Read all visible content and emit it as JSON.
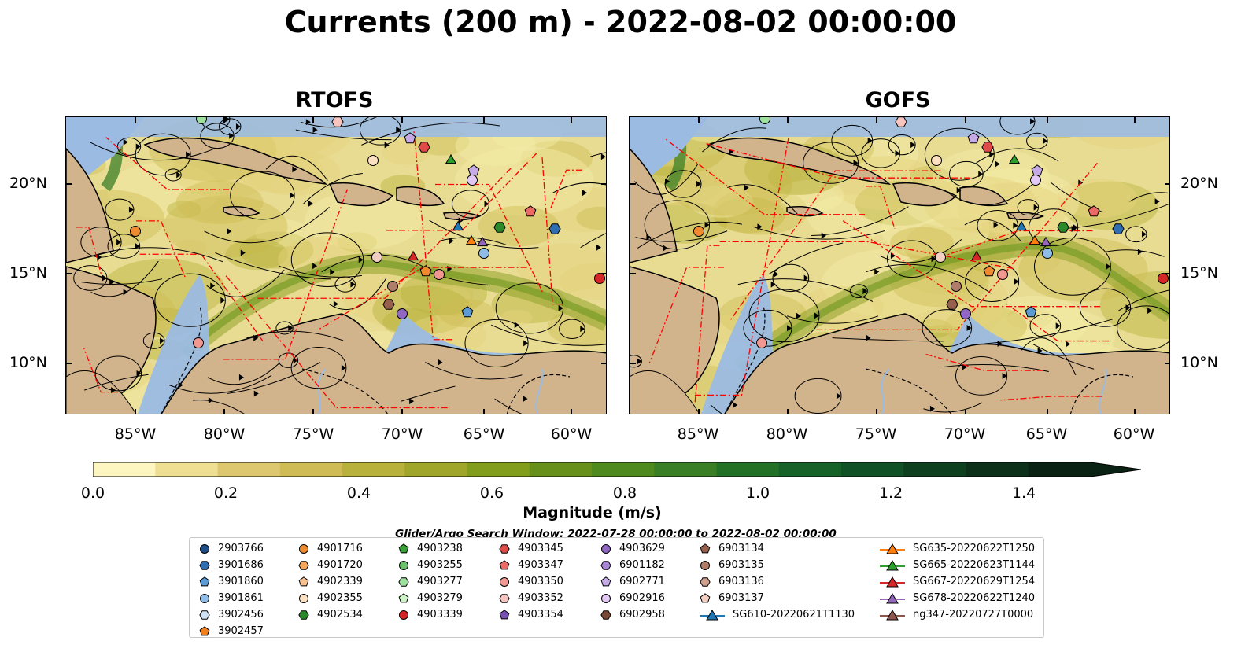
{
  "title": "Currents (200 m) - 2022-08-02 00:00:00",
  "panels": [
    {
      "title": "RTOFS"
    },
    {
      "title": "GOFS"
    }
  ],
  "lat_labels": [
    "20°N",
    "15°N",
    "10°N"
  ],
  "lon_labels": [
    "85°W",
    "80°W",
    "75°W",
    "70°W",
    "65°W",
    "60°W"
  ],
  "colorbar": {
    "label": "Magnitude (m/s)",
    "ticks": [
      "0.0",
      "0.2",
      "0.4",
      "0.6",
      "0.8",
      "1.0",
      "1.2",
      "1.4"
    ],
    "range": [
      0.0,
      1.6
    ],
    "colors": [
      "#fdf6c0",
      "#eedf93",
      "#ddc870",
      "#cfbc55",
      "#b8b23c",
      "#a0a62a",
      "#829d1c",
      "#67901a",
      "#4e8a1e",
      "#3a7f25",
      "#237127",
      "#166228",
      "#115126",
      "#0e4020",
      "#0c301a",
      "#0a2214"
    ]
  },
  "search_window": "Glider/Argo Search Window: 2022-07-28 00:00:00 to 2022-08-02 00:00:00",
  "legend": [
    {
      "label": "2903766",
      "marker": "circle",
      "color": "#1f4e8a"
    },
    {
      "label": "3901686",
      "marker": "hexagon",
      "color": "#2f6eb0"
    },
    {
      "label": "3901860",
      "marker": "pentagon",
      "color": "#5b9bd5"
    },
    {
      "label": "3901861",
      "marker": "circle",
      "color": "#8fbde8"
    },
    {
      "label": "3902456",
      "marker": "hexagon",
      "color": "#cfe2f3"
    },
    {
      "label": "3902457",
      "marker": "pentagon",
      "color": "#f07f1e"
    },
    {
      "label": "4901716",
      "marker": "circle",
      "color": "#f08a30"
    },
    {
      "label": "4901720",
      "marker": "hexagon",
      "color": "#f5a85c"
    },
    {
      "label": "4902339",
      "marker": "pentagon",
      "color": "#f7c08f"
    },
    {
      "label": "4902355",
      "marker": "circle",
      "color": "#fbe0c2"
    },
    {
      "label": "4902534",
      "marker": "hexagon",
      "color": "#2a8a2a"
    },
    {
      "label": "4903238",
      "marker": "pentagon",
      "color": "#3aa13a"
    },
    {
      "label": "4903255",
      "marker": "circle",
      "color": "#6cc06c"
    },
    {
      "label": "4903277",
      "marker": "hexagon",
      "color": "#9ee09e"
    },
    {
      "label": "4903279",
      "marker": "pentagon",
      "color": "#cdf2c5"
    },
    {
      "label": "4903339",
      "marker": "circle",
      "color": "#d62728"
    },
    {
      "label": "4903345",
      "marker": "hexagon",
      "color": "#e04a48"
    },
    {
      "label": "4903347",
      "marker": "pentagon",
      "color": "#ea6a66"
    },
    {
      "label": "4903350",
      "marker": "circle",
      "color": "#f29893"
    },
    {
      "label": "4903352",
      "marker": "hexagon",
      "color": "#f8c4c0"
    },
    {
      "label": "4903354",
      "marker": "pentagon",
      "color": "#7752b3"
    },
    {
      "label": "4903629",
      "marker": "circle",
      "color": "#9068c4"
    },
    {
      "label": "6901182",
      "marker": "hexagon",
      "color": "#a888d4"
    },
    {
      "label": "6902771",
      "marker": "pentagon",
      "color": "#c6aae6"
    },
    {
      "label": "6902916",
      "marker": "circle",
      "color": "#e2c8f4"
    },
    {
      "label": "6902958",
      "marker": "hexagon",
      "color": "#7b4a36"
    },
    {
      "label": "6903134",
      "marker": "pentagon",
      "color": "#96604c"
    },
    {
      "label": "6903135",
      "marker": "circle",
      "color": "#b07d6a"
    },
    {
      "label": "6903136",
      "marker": "hexagon",
      "color": "#d0a08e"
    },
    {
      "label": "6903137",
      "marker": "pentagon",
      "color": "#f2cfc2"
    },
    {
      "label": "SG610-20220621T1130",
      "marker": "triangle-line",
      "color": "#1f77b4"
    },
    {
      "label": "SG635-20220622T1250",
      "marker": "triangle-line",
      "color": "#ff7f0e"
    },
    {
      "label": "SG665-20220623T1144",
      "marker": "triangle-line",
      "color": "#2ca02c"
    },
    {
      "label": "SG667-20220629T1254",
      "marker": "triangle-line",
      "color": "#d62728"
    },
    {
      "label": "SG678-20220622T1240",
      "marker": "triangle-line",
      "color": "#9467bd"
    },
    {
      "label": "ng347-20220727T0000",
      "marker": "triangle-line",
      "color": "#8c564b"
    }
  ],
  "colors": {
    "land": "#d2b48c",
    "shallow_water": "#9bbbe3",
    "eez_lines": "#ff0000"
  }
}
